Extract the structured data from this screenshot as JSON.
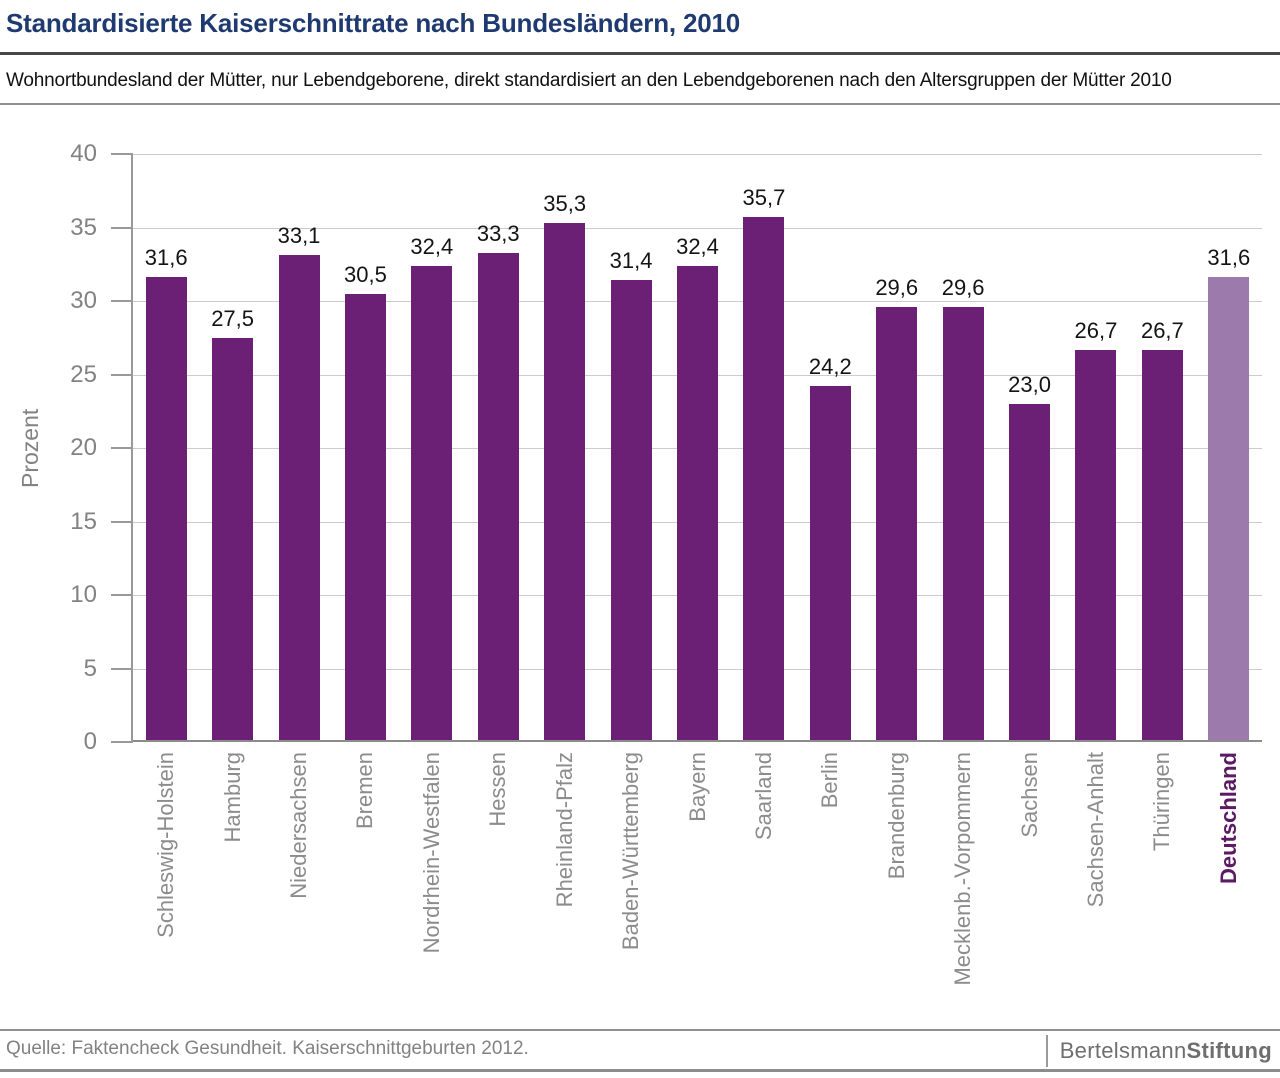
{
  "header": {
    "title": "Standardisierte Kaiserschnittrate nach Bundesländern, 2010",
    "subtitle": "Wohnortbundesland der Mütter, nur Lebendgeborene, direkt standardisiert an den Lebendgeborenen nach den Altersgruppen der Mütter 2010"
  },
  "chart_data": {
    "type": "bar",
    "title": "Standardisierte Kaiserschnittrate nach Bundesländern, 2010",
    "xlabel": "",
    "ylabel": "Prozent",
    "ylim": [
      0,
      40
    ],
    "yticks": [
      0,
      5,
      10,
      15,
      20,
      25,
      30,
      35,
      40
    ],
    "grid": true,
    "legend_position": "none",
    "categories": [
      "Schleswig-Holstein",
      "Hamburg",
      "Niedersachsen",
      "Bremen",
      "Nordrhein-Westfalen",
      "Hessen",
      "Rheinland-Pfalz",
      "Baden-Württemberg",
      "Bayern",
      "Saarland",
      "Berlin",
      "Brandenburg",
      "Mecklenb.-Vorpommern",
      "Sachsen",
      "Sachsen-Anhalt",
      "Thüringen",
      "Deutschland"
    ],
    "values": [
      31.6,
      27.5,
      33.1,
      30.5,
      32.4,
      33.3,
      35.3,
      31.4,
      32.4,
      35.7,
      24.2,
      29.6,
      29.6,
      23.0,
      26.7,
      26.7,
      31.6
    ],
    "value_labels": [
      "31,6",
      "27,5",
      "33,1",
      "30,5",
      "32,4",
      "33,3",
      "35,3",
      "31,4",
      "32,4",
      "35,7",
      "24,2",
      "29,6",
      "29,6",
      "23,0",
      "26,7",
      "26,7",
      "31,6"
    ],
    "highlight_category": "Deutschland",
    "colors": {
      "bar": "#6b2076",
      "highlight_bar": "#9c7aac",
      "highlight_label": "#5b1a63",
      "title": "#1f3a70"
    }
  },
  "footer": {
    "source": "Quelle: Faktencheck Gesundheit. Kaiserschnittgeburten 2012.",
    "logo": {
      "part1": "Bertelsmann",
      "part2": "Stiftung"
    }
  }
}
